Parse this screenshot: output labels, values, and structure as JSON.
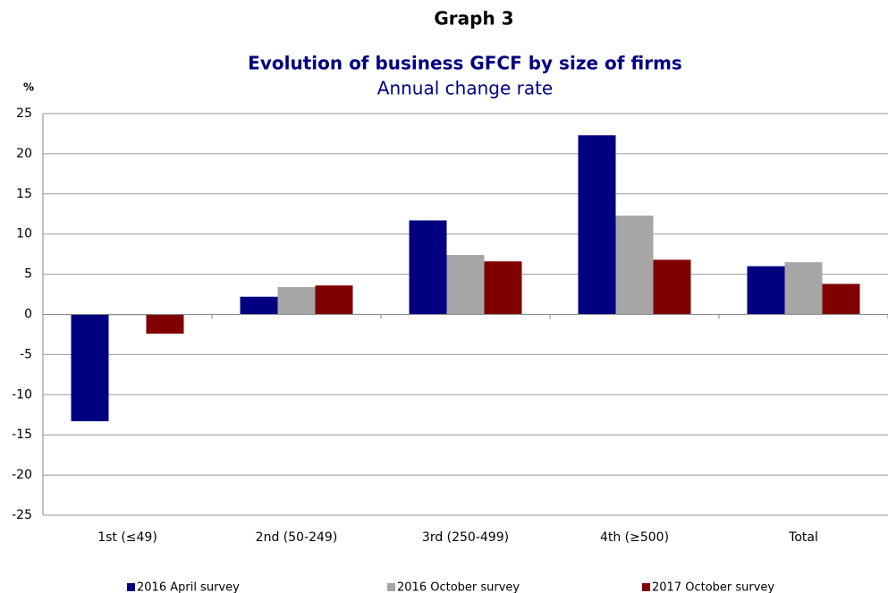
{
  "chart_data": {
    "type": "bar",
    "title": "Graph 3",
    "subtitle": "Evolution of business GFCF by size of firms",
    "caption": "Annual change rate",
    "y_label": "%",
    "categories": [
      "1st (≤49)",
      "2nd (50-249)",
      "3rd (250-499)",
      "4th (≥500)",
      "Total"
    ],
    "series": [
      {
        "name": "2016 April survey",
        "color": "#000080",
        "values": [
          -13.3,
          2.2,
          11.7,
          22.3,
          6.0
        ]
      },
      {
        "name": "2016 October survey",
        "color": "#a6a6a6",
        "values": [
          -0.1,
          3.4,
          7.4,
          12.3,
          6.5
        ]
      },
      {
        "name": "2017 October survey",
        "color": "#800000",
        "values": [
          -2.4,
          3.6,
          6.6,
          6.8,
          3.8
        ]
      }
    ],
    "ylim": [
      -25,
      25
    ],
    "yticks": [
      -25,
      -20,
      -15,
      -10,
      -5,
      0,
      5,
      10,
      15,
      20,
      25
    ],
    "grid": true,
    "legend": "bottom"
  }
}
